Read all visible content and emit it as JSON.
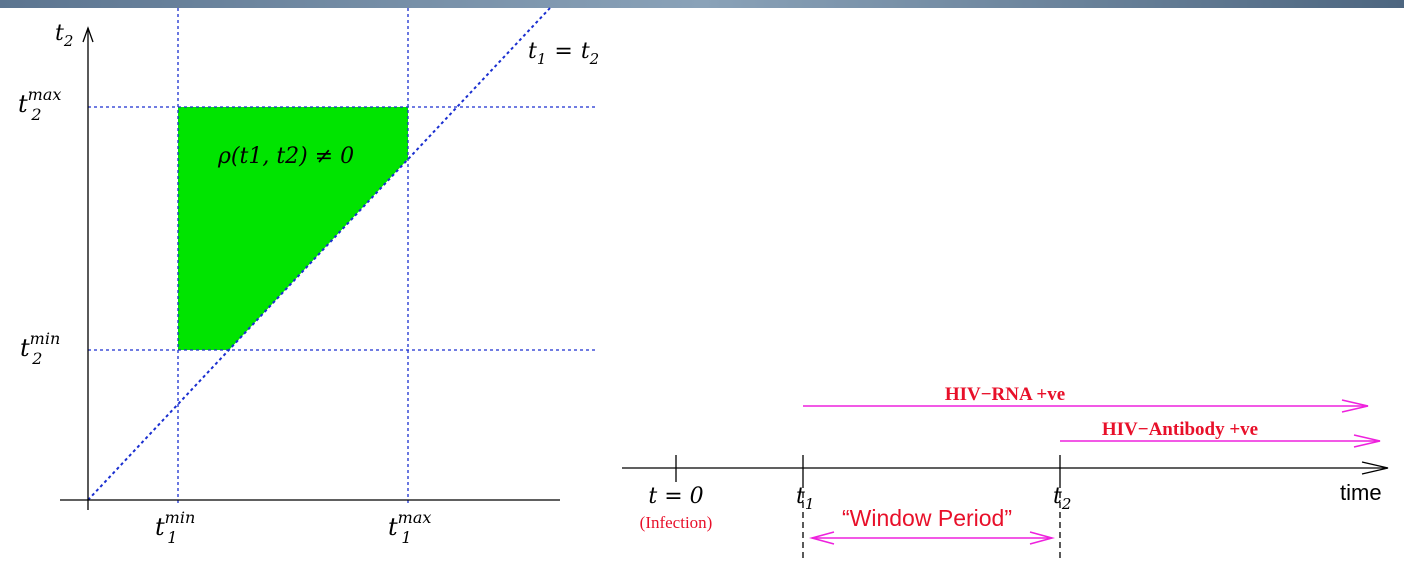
{
  "left": {
    "t2_axis": {
      "base": "t",
      "sub": "2"
    },
    "diagonal": {
      "lhs_base": "t",
      "lhs_sub": "1",
      "eq": "=",
      "rhs_base": "t",
      "rhs_sub": "2"
    },
    "t2max": {
      "base": "t",
      "sub": "2",
      "sup": "max"
    },
    "t2min": {
      "base": "t",
      "sub": "2",
      "sup": "min"
    },
    "t1min": {
      "base": "t",
      "sub": "1",
      "sup": "min"
    },
    "t1max": {
      "base": "t",
      "sub": "1",
      "sup": "max"
    },
    "region": "ρ(t1, t2) ≠ 0"
  },
  "right": {
    "t0": "t = 0",
    "infection": "(Infection)",
    "t1": {
      "base": "t",
      "sub": "1"
    },
    "t2": {
      "base": "t",
      "sub": "2"
    },
    "time": "time",
    "window": "“Window Period”",
    "rna": "HIV−RNA +ve",
    "antibody": "HIV−Antibody +ve"
  }
}
